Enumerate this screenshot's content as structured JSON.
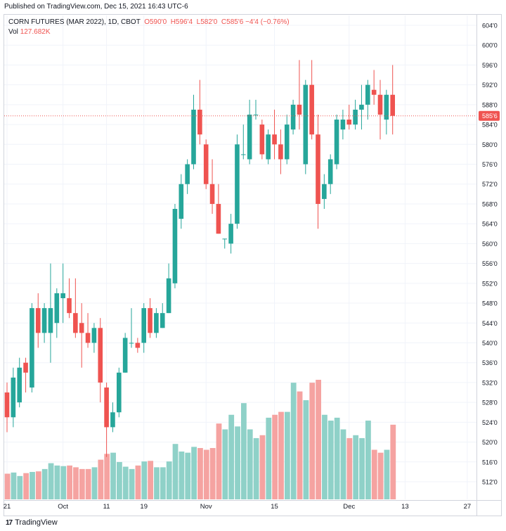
{
  "header": {
    "published": "Published on TradingView.com, Dec 15, 2021 16:43 UTC-6"
  },
  "legend": {
    "symbol": "CORN FUTURES (MAR 2022), 1D, CBOT",
    "o_label": "O",
    "o_value": "590'0",
    "h_label": "H",
    "h_value": "596'4",
    "l_label": "L",
    "l_value": "582'0",
    "c_label": "C",
    "c_value": "585'6",
    "change": "−4'4 (−0.76%)",
    "vol_label": "Vol",
    "vol_value": "127.682K"
  },
  "footer": {
    "logo": "17",
    "brand": "TradingView"
  },
  "colors": {
    "up": "#26a69a",
    "down": "#ef5350",
    "up_vol": "#8fd1c8",
    "down_vol": "#f5a3a1",
    "grid": "#f0f3fa",
    "axis_text": "#131722",
    "last_price_bg": "#ef5350"
  },
  "chart_data": {
    "type": "candlestick",
    "ylim": [
      509,
      606
    ],
    "y_ticks": [
      "604'0",
      "600'0",
      "596'0",
      "592'0",
      "588'0",
      "584'0",
      "580'0",
      "576'0",
      "572'0",
      "568'0",
      "564'0",
      "560'0",
      "556'0",
      "552'0",
      "548'0",
      "544'0",
      "540'0",
      "536'0",
      "532'0",
      "528'0",
      "524'0",
      "520'0",
      "516'0",
      "512'0"
    ],
    "x_labels": [
      {
        "label": "21",
        "index": 0
      },
      {
        "label": "Oct",
        "index": 9
      },
      {
        "label": "11",
        "index": 16
      },
      {
        "label": "19",
        "index": 22
      },
      {
        "label": "Nov",
        "index": 32
      },
      {
        "label": "15",
        "index": 43
      },
      {
        "label": "Dec",
        "index": 55
      },
      {
        "label": "13",
        "index": 64
      },
      {
        "label": "27",
        "index": 74
      }
    ],
    "last_price": "585'6",
    "last_price_value": 585.75,
    "candles": [
      {
        "o": 530,
        "h": 532,
        "l": 522,
        "c": 525,
        "v": 44
      },
      {
        "o": 525,
        "h": 535,
        "l": 523,
        "c": 533,
        "v": 46
      },
      {
        "o": 528,
        "h": 537,
        "l": 527,
        "c": 535,
        "v": 40
      },
      {
        "o": 536,
        "h": 537,
        "l": 530,
        "c": 534,
        "v": 45
      },
      {
        "o": 531,
        "h": 548,
        "l": 530,
        "c": 547,
        "v": 47
      },
      {
        "o": 547,
        "h": 550,
        "l": 539,
        "c": 542,
        "v": 48
      },
      {
        "o": 542,
        "h": 548,
        "l": 540,
        "c": 547,
        "v": 52
      },
      {
        "o": 542,
        "h": 556,
        "l": 536,
        "c": 547,
        "v": 62
      },
      {
        "o": 544,
        "h": 551,
        "l": 541,
        "c": 550,
        "v": 58
      },
      {
        "o": 549,
        "h": 556,
        "l": 544,
        "c": 550,
        "v": 57
      },
      {
        "o": 549,
        "h": 553,
        "l": 545,
        "c": 546,
        "v": 58
      },
      {
        "o": 546,
        "h": 553,
        "l": 541,
        "c": 542,
        "v": 55
      },
      {
        "o": 544,
        "h": 548,
        "l": 535,
        "c": 542,
        "v": 52
      },
      {
        "o": 542,
        "h": 546,
        "l": 539,
        "c": 540,
        "v": 52
      },
      {
        "o": 540,
        "h": 544,
        "l": 538,
        "c": 543,
        "v": 55
      },
      {
        "o": 543,
        "h": 545,
        "l": 528,
        "c": 532,
        "v": 68
      },
      {
        "o": 531,
        "h": 532,
        "l": 517,
        "c": 523,
        "v": 78
      },
      {
        "o": 523,
        "h": 528,
        "l": 522,
        "c": 526,
        "v": 80
      },
      {
        "o": 526,
        "h": 535,
        "l": 525,
        "c": 534,
        "v": 64
      },
      {
        "o": 534,
        "h": 542,
        "l": 534,
        "c": 541,
        "v": 56
      },
      {
        "o": 540,
        "h": 547,
        "l": 539,
        "c": 540,
        "v": 52
      },
      {
        "o": 540,
        "h": 541,
        "l": 538,
        "c": 539,
        "v": 58
      },
      {
        "o": 540,
        "h": 548,
        "l": 538,
        "c": 547,
        "v": 65
      },
      {
        "o": 547,
        "h": 549,
        "l": 541,
        "c": 542,
        "v": 66
      },
      {
        "o": 542,
        "h": 547,
        "l": 541,
        "c": 546,
        "v": 55
      },
      {
        "o": 543,
        "h": 548,
        "l": 543,
        "c": 546,
        "v": 55
      },
      {
        "o": 546,
        "h": 556,
        "l": 546,
        "c": 553,
        "v": 65
      },
      {
        "o": 552,
        "h": 568,
        "l": 551,
        "c": 567,
        "v": 95
      },
      {
        "o": 565,
        "h": 574,
        "l": 563,
        "c": 572,
        "v": 82
      },
      {
        "o": 572,
        "h": 577,
        "l": 570,
        "c": 576,
        "v": 80
      },
      {
        "o": 576,
        "h": 590,
        "l": 575,
        "c": 587,
        "v": 90
      },
      {
        "o": 587,
        "h": 593,
        "l": 580,
        "c": 582,
        "v": 88
      },
      {
        "o": 580,
        "h": 581,
        "l": 571,
        "c": 572,
        "v": 85
      },
      {
        "o": 572,
        "h": 577,
        "l": 566,
        "c": 568,
        "v": 88
      },
      {
        "o": 568,
        "h": 572,
        "l": 562,
        "c": 562,
        "v": 130
      },
      {
        "o": 561,
        "h": 561,
        "l": 559,
        "c": 561,
        "v": 120
      },
      {
        "o": 560,
        "h": 566,
        "l": 558,
        "c": 564,
        "v": 145
      },
      {
        "o": 564,
        "h": 582,
        "l": 563,
        "c": 580,
        "v": 125
      },
      {
        "o": 578,
        "h": 584,
        "l": 577,
        "c": 578,
        "v": 165
      },
      {
        "o": 577,
        "h": 589,
        "l": 576,
        "c": 586,
        "v": 120
      },
      {
        "o": 586,
        "h": 589,
        "l": 585,
        "c": 586,
        "v": 105
      },
      {
        "o": 584,
        "h": 585,
        "l": 577,
        "c": 578,
        "v": 110
      },
      {
        "o": 577,
        "h": 583,
        "l": 576,
        "c": 582,
        "v": 140
      },
      {
        "o": 582,
        "h": 587,
        "l": 577,
        "c": 580,
        "v": 145
      },
      {
        "o": 580,
        "h": 583,
        "l": 574,
        "c": 577,
        "v": 150
      },
      {
        "o": 577,
        "h": 586,
        "l": 576,
        "c": 584,
        "v": 150
      },
      {
        "o": 583,
        "h": 589,
        "l": 582,
        "c": 588,
        "v": 200
      },
      {
        "o": 588,
        "h": 597,
        "l": 583,
        "c": 586,
        "v": 185
      },
      {
        "o": 576,
        "h": 593,
        "l": 574,
        "c": 592,
        "v": 170
      },
      {
        "o": 592,
        "h": 597,
        "l": 581,
        "c": 582,
        "v": 200
      },
      {
        "o": 582,
        "h": 586,
        "l": 563,
        "c": 568,
        "v": 205
      },
      {
        "o": 569,
        "h": 574,
        "l": 567,
        "c": 572,
        "v": 145
      },
      {
        "o": 572,
        "h": 578,
        "l": 570,
        "c": 577,
        "v": 135
      },
      {
        "o": 576,
        "h": 586,
        "l": 575,
        "c": 585,
        "v": 140
      },
      {
        "o": 583,
        "h": 587,
        "l": 581,
        "c": 585,
        "v": 120
      },
      {
        "o": 585,
        "h": 588,
        "l": 583,
        "c": 584,
        "v": 105
      },
      {
        "o": 584,
        "h": 589,
        "l": 583,
        "c": 587,
        "v": 110
      },
      {
        "o": 587,
        "h": 592,
        "l": 583,
        "c": 588,
        "v": 105
      },
      {
        "o": 588,
        "h": 593,
        "l": 585,
        "c": 592,
        "v": 135
      },
      {
        "o": 591,
        "h": 595,
        "l": 588,
        "c": 590,
        "v": 85
      },
      {
        "o": 590,
        "h": 593,
        "l": 581,
        "c": 586,
        "v": 80
      },
      {
        "o": 585,
        "h": 591,
        "l": 582,
        "c": 590,
        "v": 85
      },
      {
        "o": 590,
        "h": 596,
        "l": 582,
        "c": 585.75,
        "v": 128
      }
    ]
  }
}
